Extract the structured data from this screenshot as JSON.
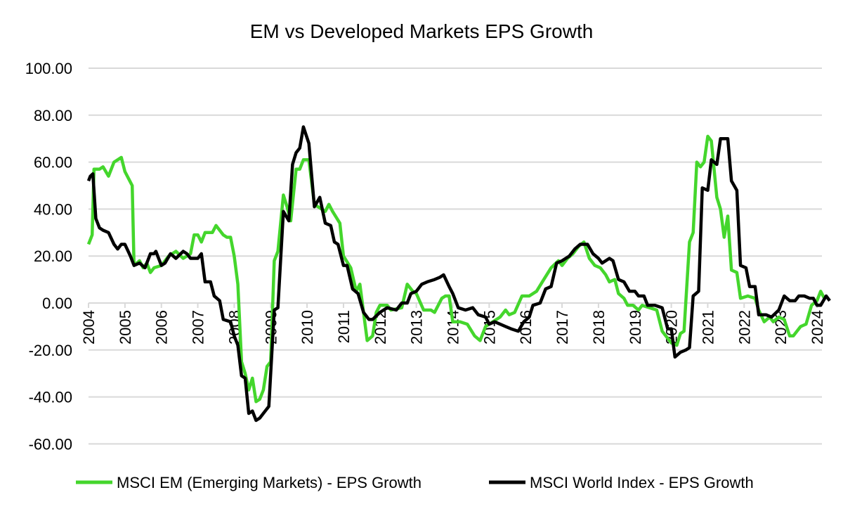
{
  "chart_data": {
    "type": "line",
    "title": "EM vs Developed Markets EPS Growth",
    "xlabel": "",
    "ylabel": "",
    "ylim": [
      -60,
      100
    ],
    "xlim": [
      2004,
      2024.2
    ],
    "grid": true,
    "legend_position": "bottom",
    "y_ticks": [
      "100.00",
      "80.00",
      "60.00",
      "40.00",
      "20.00",
      "0.00",
      "-20.00",
      "-40.00",
      "-60.00"
    ],
    "x_ticks": [
      "2004",
      "2005",
      "2006",
      "2007",
      "2008",
      "2009",
      "2010",
      "2011",
      "2012",
      "2013",
      "2014",
      "2015",
      "2016",
      "2017",
      "2018",
      "2019",
      "2020",
      "2021",
      "2022",
      "2023",
      "2024"
    ],
    "series": [
      {
        "name": "MSCI EM (Emerging Markets) - EPS Growth",
        "color": "#44d62c",
        "points": [
          [
            2004.0,
            25
          ],
          [
            2004.1,
            29
          ],
          [
            2004.15,
            57
          ],
          [
            2004.3,
            57
          ],
          [
            2004.4,
            58
          ],
          [
            2004.55,
            54
          ],
          [
            2004.7,
            60
          ],
          [
            2004.8,
            61
          ],
          [
            2004.9,
            62
          ],
          [
            2005.0,
            56
          ],
          [
            2005.2,
            50
          ],
          [
            2005.25,
            16
          ],
          [
            2005.4,
            18
          ],
          [
            2005.5,
            15
          ],
          [
            2005.6,
            17
          ],
          [
            2005.7,
            13
          ],
          [
            2005.8,
            15
          ],
          [
            2006.0,
            16
          ],
          [
            2006.2,
            20
          ],
          [
            2006.4,
            22
          ],
          [
            2006.6,
            19
          ],
          [
            2006.8,
            21
          ],
          [
            2006.9,
            29
          ],
          [
            2007.0,
            29
          ],
          [
            2007.1,
            26
          ],
          [
            2007.2,
            30
          ],
          [
            2007.4,
            30
          ],
          [
            2007.5,
            33
          ],
          [
            2007.7,
            29
          ],
          [
            2007.8,
            28
          ],
          [
            2007.9,
            28
          ],
          [
            2008.0,
            20
          ],
          [
            2008.1,
            8
          ],
          [
            2008.2,
            -25
          ],
          [
            2008.3,
            -30
          ],
          [
            2008.4,
            -37
          ],
          [
            2008.5,
            -32
          ],
          [
            2008.6,
            -42
          ],
          [
            2008.7,
            -41
          ],
          [
            2008.8,
            -37
          ],
          [
            2008.9,
            -27
          ],
          [
            2009.0,
            -25
          ],
          [
            2009.1,
            18
          ],
          [
            2009.2,
            22
          ],
          [
            2009.35,
            46
          ],
          [
            2009.45,
            41
          ],
          [
            2009.55,
            35
          ],
          [
            2009.7,
            57
          ],
          [
            2009.8,
            57
          ],
          [
            2009.9,
            61
          ],
          [
            2010.05,
            61
          ],
          [
            2010.2,
            42
          ],
          [
            2010.4,
            40
          ],
          [
            2010.5,
            39
          ],
          [
            2010.6,
            42
          ],
          [
            2010.7,
            39
          ],
          [
            2010.9,
            34
          ],
          [
            2011.0,
            20
          ],
          [
            2011.2,
            15
          ],
          [
            2011.35,
            5
          ],
          [
            2011.45,
            8
          ],
          [
            2011.65,
            -16
          ],
          [
            2011.8,
            -14
          ],
          [
            2011.9,
            -4
          ],
          [
            2012.0,
            -1
          ],
          [
            2012.2,
            -1
          ],
          [
            2012.3,
            -3
          ],
          [
            2012.6,
            -2
          ],
          [
            2012.75,
            8
          ],
          [
            2012.9,
            5
          ],
          [
            2013.0,
            4
          ],
          [
            2013.2,
            -3
          ],
          [
            2013.4,
            -3
          ],
          [
            2013.5,
            -4
          ],
          [
            2013.7,
            2
          ],
          [
            2013.8,
            3
          ],
          [
            2013.9,
            3
          ],
          [
            2014.0,
            -8
          ],
          [
            2014.2,
            -8
          ],
          [
            2014.4,
            -9
          ],
          [
            2014.6,
            -14
          ],
          [
            2014.75,
            -16
          ],
          [
            2014.9,
            -10
          ],
          [
            2015.1,
            -8
          ],
          [
            2015.3,
            -6
          ],
          [
            2015.45,
            -3
          ],
          [
            2015.55,
            -5
          ],
          [
            2015.7,
            -4
          ],
          [
            2015.9,
            3
          ],
          [
            2016.1,
            3
          ],
          [
            2016.3,
            5
          ],
          [
            2016.5,
            10
          ],
          [
            2016.7,
            15
          ],
          [
            2016.9,
            18
          ],
          [
            2017.0,
            16
          ],
          [
            2017.15,
            19
          ],
          [
            2017.3,
            21
          ],
          [
            2017.45,
            24
          ],
          [
            2017.6,
            26
          ],
          [
            2017.75,
            19
          ],
          [
            2017.9,
            16
          ],
          [
            2018.05,
            15
          ],
          [
            2018.2,
            12
          ],
          [
            2018.3,
            9
          ],
          [
            2018.45,
            10
          ],
          [
            2018.55,
            4
          ],
          [
            2018.7,
            2
          ],
          [
            2018.8,
            -1
          ],
          [
            2018.95,
            -1
          ],
          [
            2019.1,
            -3
          ],
          [
            2019.2,
            -1
          ],
          [
            2019.4,
            -2
          ],
          [
            2019.6,
            -3
          ],
          [
            2019.75,
            -12
          ],
          [
            2019.9,
            -15
          ],
          [
            2020.0,
            -17
          ],
          [
            2020.15,
            -18
          ],
          [
            2020.25,
            -13
          ],
          [
            2020.35,
            -12
          ],
          [
            2020.5,
            26
          ],
          [
            2020.6,
            30
          ],
          [
            2020.7,
            60
          ],
          [
            2020.8,
            58
          ],
          [
            2020.9,
            60
          ],
          [
            2021.0,
            71
          ],
          [
            2021.1,
            69
          ],
          [
            2021.25,
            45
          ],
          [
            2021.35,
            40
          ],
          [
            2021.45,
            28
          ],
          [
            2021.55,
            37
          ],
          [
            2021.65,
            14
          ],
          [
            2021.8,
            13
          ],
          [
            2021.9,
            2
          ],
          [
            2022.1,
            3
          ],
          [
            2022.3,
            2
          ],
          [
            2022.4,
            -3
          ],
          [
            2022.55,
            -8
          ],
          [
            2022.7,
            -6
          ],
          [
            2022.8,
            -8
          ],
          [
            2022.95,
            -6
          ],
          [
            2023.1,
            -7
          ],
          [
            2023.25,
            -14
          ],
          [
            2023.35,
            -14
          ],
          [
            2023.55,
            -10
          ],
          [
            2023.7,
            -9
          ],
          [
            2023.85,
            -1
          ],
          [
            2024.0,
            1
          ],
          [
            2024.1,
            5
          ],
          [
            2024.2,
            2
          ]
        ]
      },
      {
        "name": "MSCI World Index - EPS Growth",
        "color": "#000000",
        "points": [
          [
            2004.0,
            52
          ],
          [
            2004.05,
            54
          ],
          [
            2004.12,
            55
          ],
          [
            2004.2,
            36
          ],
          [
            2004.3,
            32
          ],
          [
            2004.4,
            31
          ],
          [
            2004.55,
            30
          ],
          [
            2004.7,
            25
          ],
          [
            2004.8,
            23
          ],
          [
            2004.9,
            25
          ],
          [
            2005.0,
            25
          ],
          [
            2005.15,
            20
          ],
          [
            2005.25,
            16
          ],
          [
            2005.4,
            17
          ],
          [
            2005.55,
            15
          ],
          [
            2005.7,
            21
          ],
          [
            2005.8,
            21
          ],
          [
            2005.85,
            22
          ],
          [
            2006.0,
            16
          ],
          [
            2006.1,
            17
          ],
          [
            2006.25,
            21
          ],
          [
            2006.4,
            19
          ],
          [
            2006.6,
            22
          ],
          [
            2006.7,
            21
          ],
          [
            2006.8,
            19
          ],
          [
            2007.0,
            19
          ],
          [
            2007.1,
            21
          ],
          [
            2007.2,
            9
          ],
          [
            2007.35,
            9
          ],
          [
            2007.45,
            3
          ],
          [
            2007.6,
            1
          ],
          [
            2007.7,
            -7
          ],
          [
            2007.9,
            -8
          ],
          [
            2008.0,
            -14
          ],
          [
            2008.1,
            -18
          ],
          [
            2008.2,
            -31
          ],
          [
            2008.3,
            -32
          ],
          [
            2008.4,
            -47
          ],
          [
            2008.5,
            -46
          ],
          [
            2008.6,
            -50
          ],
          [
            2008.7,
            -49
          ],
          [
            2008.8,
            -47
          ],
          [
            2008.95,
            -44
          ],
          [
            2009.1,
            -3
          ],
          [
            2009.2,
            -2
          ],
          [
            2009.35,
            39
          ],
          [
            2009.5,
            35
          ],
          [
            2009.6,
            59
          ],
          [
            2009.7,
            64
          ],
          [
            2009.8,
            66
          ],
          [
            2009.9,
            75
          ],
          [
            2010.05,
            68
          ],
          [
            2010.2,
            41
          ],
          [
            2010.35,
            45
          ],
          [
            2010.5,
            34
          ],
          [
            2010.65,
            33
          ],
          [
            2010.75,
            26
          ],
          [
            2010.85,
            25
          ],
          [
            2011.0,
            16
          ],
          [
            2011.1,
            16
          ],
          [
            2011.25,
            6
          ],
          [
            2011.4,
            4
          ],
          [
            2011.55,
            -4
          ],
          [
            2011.7,
            -7
          ],
          [
            2011.8,
            -7
          ],
          [
            2012.0,
            -4
          ],
          [
            2012.2,
            -2
          ],
          [
            2012.45,
            -3
          ],
          [
            2012.6,
            0
          ],
          [
            2012.75,
            0
          ],
          [
            2012.85,
            4
          ],
          [
            2013.0,
            5
          ],
          [
            2013.15,
            8
          ],
          [
            2013.3,
            9
          ],
          [
            2013.5,
            10
          ],
          [
            2013.65,
            11
          ],
          [
            2013.75,
            12
          ],
          [
            2013.9,
            7
          ],
          [
            2014.0,
            4
          ],
          [
            2014.15,
            -2
          ],
          [
            2014.35,
            -3
          ],
          [
            2014.55,
            -2
          ],
          [
            2014.7,
            -5
          ],
          [
            2014.9,
            -6
          ],
          [
            2015.0,
            -9
          ],
          [
            2015.15,
            -8
          ],
          [
            2015.3,
            -9
          ],
          [
            2015.45,
            -10
          ],
          [
            2015.6,
            -11
          ],
          [
            2015.8,
            -12
          ],
          [
            2015.95,
            -8
          ],
          [
            2016.1,
            -6
          ],
          [
            2016.2,
            -1
          ],
          [
            2016.4,
            0
          ],
          [
            2016.55,
            6
          ],
          [
            2016.7,
            7
          ],
          [
            2016.85,
            17
          ],
          [
            2017.0,
            18
          ],
          [
            2017.2,
            20
          ],
          [
            2017.35,
            23
          ],
          [
            2017.5,
            25
          ],
          [
            2017.7,
            25
          ],
          [
            2017.85,
            21
          ],
          [
            2018.0,
            19
          ],
          [
            2018.1,
            17
          ],
          [
            2018.3,
            19
          ],
          [
            2018.4,
            18
          ],
          [
            2018.55,
            10
          ],
          [
            2018.7,
            9
          ],
          [
            2018.85,
            5
          ],
          [
            2019.0,
            5
          ],
          [
            2019.1,
            3
          ],
          [
            2019.25,
            3
          ],
          [
            2019.35,
            -1
          ],
          [
            2019.55,
            -1
          ],
          [
            2019.75,
            -2
          ],
          [
            2019.9,
            -11
          ],
          [
            2020.0,
            -11
          ],
          [
            2020.1,
            -23
          ],
          [
            2020.25,
            -21
          ],
          [
            2020.4,
            -20
          ],
          [
            2020.5,
            -19
          ],
          [
            2020.6,
            3
          ],
          [
            2020.75,
            5
          ],
          [
            2020.85,
            49
          ],
          [
            2021.0,
            48
          ],
          [
            2021.1,
            61
          ],
          [
            2021.25,
            59
          ],
          [
            2021.35,
            70
          ],
          [
            2021.55,
            70
          ],
          [
            2021.65,
            52
          ],
          [
            2021.8,
            48
          ],
          [
            2021.9,
            16
          ],
          [
            2022.05,
            15
          ],
          [
            2022.15,
            7
          ],
          [
            2022.3,
            7
          ],
          [
            2022.4,
            -5
          ],
          [
            2022.6,
            -5
          ],
          [
            2022.75,
            -6
          ],
          [
            2022.95,
            -3
          ],
          [
            2023.1,
            3
          ],
          [
            2023.25,
            1
          ],
          [
            2023.4,
            1
          ],
          [
            2023.5,
            3
          ],
          [
            2023.65,
            3
          ],
          [
            2023.8,
            2
          ],
          [
            2023.9,
            2
          ],
          [
            2024.0,
            -1
          ],
          [
            2024.1,
            -1
          ],
          [
            2024.25,
            3
          ],
          [
            2024.35,
            1
          ]
        ]
      }
    ]
  }
}
